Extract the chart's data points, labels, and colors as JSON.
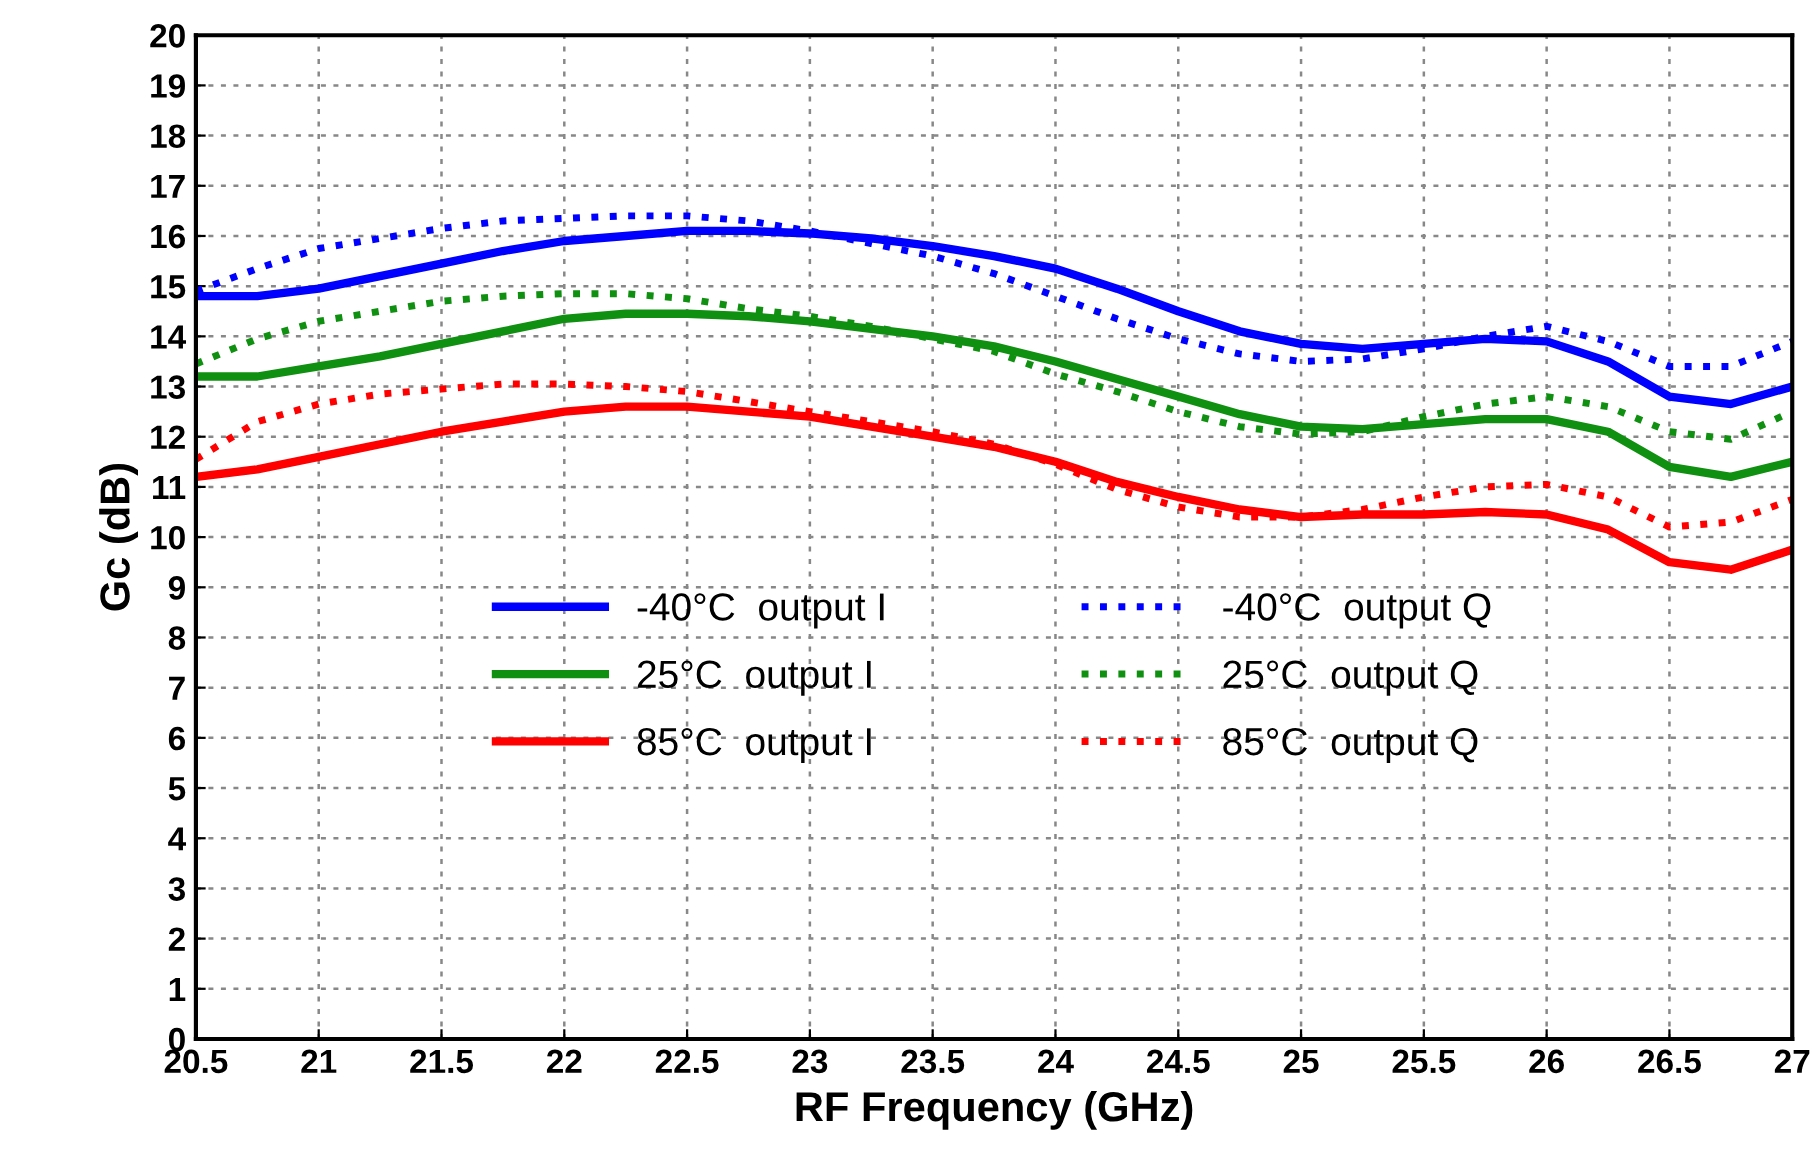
{
  "chart_data": {
    "type": "line",
    "xlabel": "RF Frequency (GHz)",
    "ylabel": "Gc (dB)",
    "x": [
      20.5,
      20.75,
      21,
      21.25,
      21.5,
      21.75,
      22,
      22.25,
      22.5,
      22.75,
      23,
      23.25,
      23.5,
      23.75,
      24,
      24.25,
      24.5,
      24.75,
      25,
      25.25,
      25.5,
      25.75,
      26,
      26.25,
      26.5,
      26.75,
      27
    ],
    "series": [
      {
        "name": "-40°C  output I",
        "color": "#0000ff",
        "line_style": "solid",
        "values": [
          14.8,
          14.8,
          14.95,
          15.2,
          15.45,
          15.7,
          15.9,
          16.0,
          16.1,
          16.1,
          16.05,
          15.95,
          15.8,
          15.6,
          15.35,
          14.95,
          14.5,
          14.1,
          13.85,
          13.75,
          13.85,
          13.95,
          13.9,
          13.5,
          12.8,
          12.65,
          13.0
        ]
      },
      {
        "name": "25°C  output I",
        "color": "#109010",
        "line_style": "solid",
        "values": [
          13.2,
          13.2,
          13.4,
          13.6,
          13.85,
          14.1,
          14.35,
          14.45,
          14.45,
          14.4,
          14.3,
          14.15,
          14.0,
          13.8,
          13.5,
          13.15,
          12.8,
          12.45,
          12.2,
          12.15,
          12.25,
          12.35,
          12.35,
          12.1,
          11.4,
          11.2,
          11.5
        ]
      },
      {
        "name": "85°C  output I",
        "color": "#ff0000",
        "line_style": "solid",
        "values": [
          11.2,
          11.35,
          11.6,
          11.85,
          12.1,
          12.3,
          12.5,
          12.6,
          12.6,
          12.5,
          12.4,
          12.2,
          12.0,
          11.8,
          11.5,
          11.1,
          10.8,
          10.55,
          10.4,
          10.45,
          10.45,
          10.5,
          10.45,
          10.15,
          9.5,
          9.35,
          9.75
        ]
      },
      {
        "name": "-40°C  output Q",
        "color": "#0000ff",
        "line_style": "dotted",
        "values": [
          14.9,
          15.35,
          15.75,
          15.95,
          16.15,
          16.3,
          16.35,
          16.4,
          16.4,
          16.3,
          16.1,
          15.85,
          15.6,
          15.25,
          14.8,
          14.35,
          13.95,
          13.65,
          13.5,
          13.55,
          13.75,
          14.0,
          14.2,
          13.9,
          13.4,
          13.4,
          13.9
        ]
      },
      {
        "name": "25°C  output Q",
        "color": "#109010",
        "line_style": "dotted",
        "values": [
          13.45,
          13.95,
          14.3,
          14.5,
          14.7,
          14.8,
          14.85,
          14.85,
          14.75,
          14.55,
          14.4,
          14.2,
          13.95,
          13.7,
          13.25,
          12.9,
          12.5,
          12.2,
          12.05,
          12.1,
          12.4,
          12.65,
          12.8,
          12.6,
          12.1,
          11.95,
          12.5
        ]
      },
      {
        "name": "85°C  output Q",
        "color": "#ff0000",
        "line_style": "dotted",
        "values": [
          11.55,
          12.3,
          12.65,
          12.85,
          12.95,
          13.05,
          13.05,
          13.0,
          12.9,
          12.7,
          12.5,
          12.3,
          12.1,
          11.85,
          11.45,
          10.95,
          10.6,
          10.4,
          10.4,
          10.55,
          10.8,
          11.0,
          11.05,
          10.8,
          10.2,
          10.3,
          10.75
        ]
      }
    ],
    "xlim": [
      20.5,
      27
    ],
    "xticks": [
      20.5,
      21,
      21.5,
      22,
      22.5,
      23,
      23.5,
      24,
      24.5,
      25,
      25.5,
      26,
      26.5,
      27
    ],
    "ylim": [
      0,
      20
    ],
    "yticks": [
      0,
      1,
      2,
      3,
      4,
      5,
      6,
      7,
      8,
      9,
      10,
      11,
      12,
      13,
      14,
      15,
      16,
      17,
      18,
      19,
      20
    ],
    "grid": true,
    "legend": "center",
    "marker": "none"
  }
}
